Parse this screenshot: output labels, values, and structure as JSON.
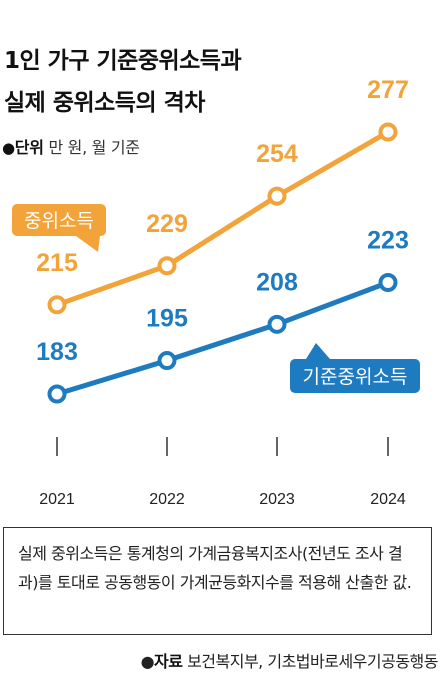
{
  "title_lines": [
    "1인 가구 기준중위소득과",
    "실제 중위소득의 격차"
  ],
  "unit": {
    "bullet": "●",
    "label": "단위",
    "text": "만 원, 월 기준"
  },
  "chart_data": {
    "type": "line",
    "categories": [
      "2021",
      "2022",
      "2023",
      "2024"
    ],
    "series": [
      {
        "name": "중위소득",
        "values": [
          215,
          229,
          254,
          277
        ],
        "color": "#f2a33a"
      },
      {
        "name": "기준중위소득",
        "values": [
          183,
          195,
          208,
          223
        ],
        "color": "#1f7bc0"
      }
    ],
    "grid": false
  },
  "note": "실제 중위소득은 통계청의 가계금융복지조사(전년도 조사 결과)를 토대로 공동행동이 가계균등화지수를 적용해 산출한 값.",
  "source": {
    "bullet": "●",
    "label": "자료",
    "text": "보건복지부, 기초법바로세우기공동행동"
  }
}
